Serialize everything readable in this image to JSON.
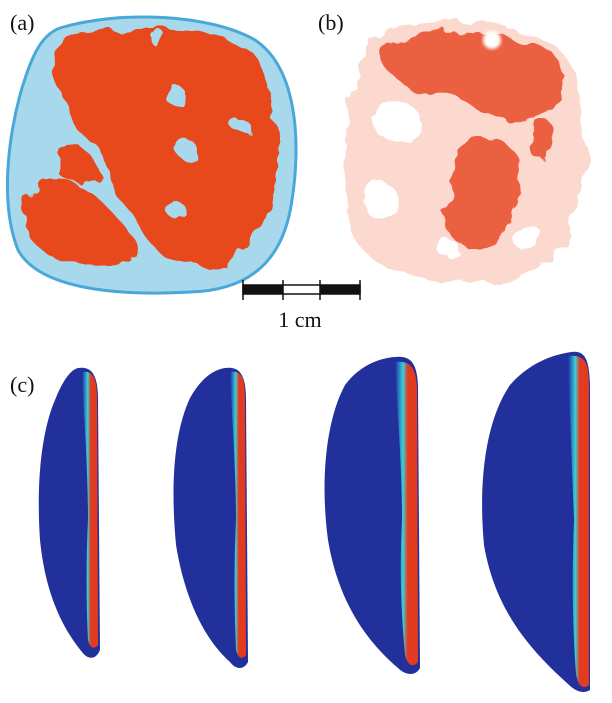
{
  "panels": [
    {
      "label": "(a)"
    },
    {
      "label": "(b)"
    },
    {
      "label": "(c)"
    }
  ],
  "scale_bar": {
    "label": "1 cm"
  }
}
